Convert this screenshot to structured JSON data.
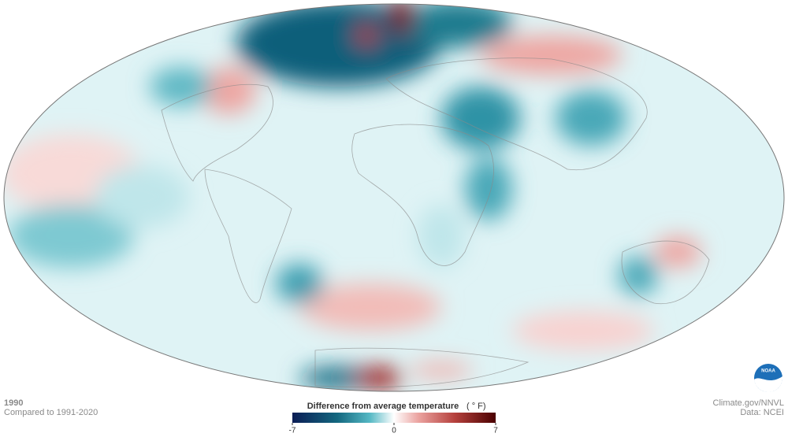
{
  "map": {
    "year": "1990",
    "baseline": "Compared to 1991-2020",
    "credit": "Climate.gov/NNVL",
    "source": "Data: NCEI",
    "logo": "NOAA"
  },
  "legend": {
    "title": "Difference from average temperature",
    "unit": "( ° F)",
    "min": -7,
    "max": 7,
    "ticks": [
      -7,
      0,
      7
    ]
  }
}
